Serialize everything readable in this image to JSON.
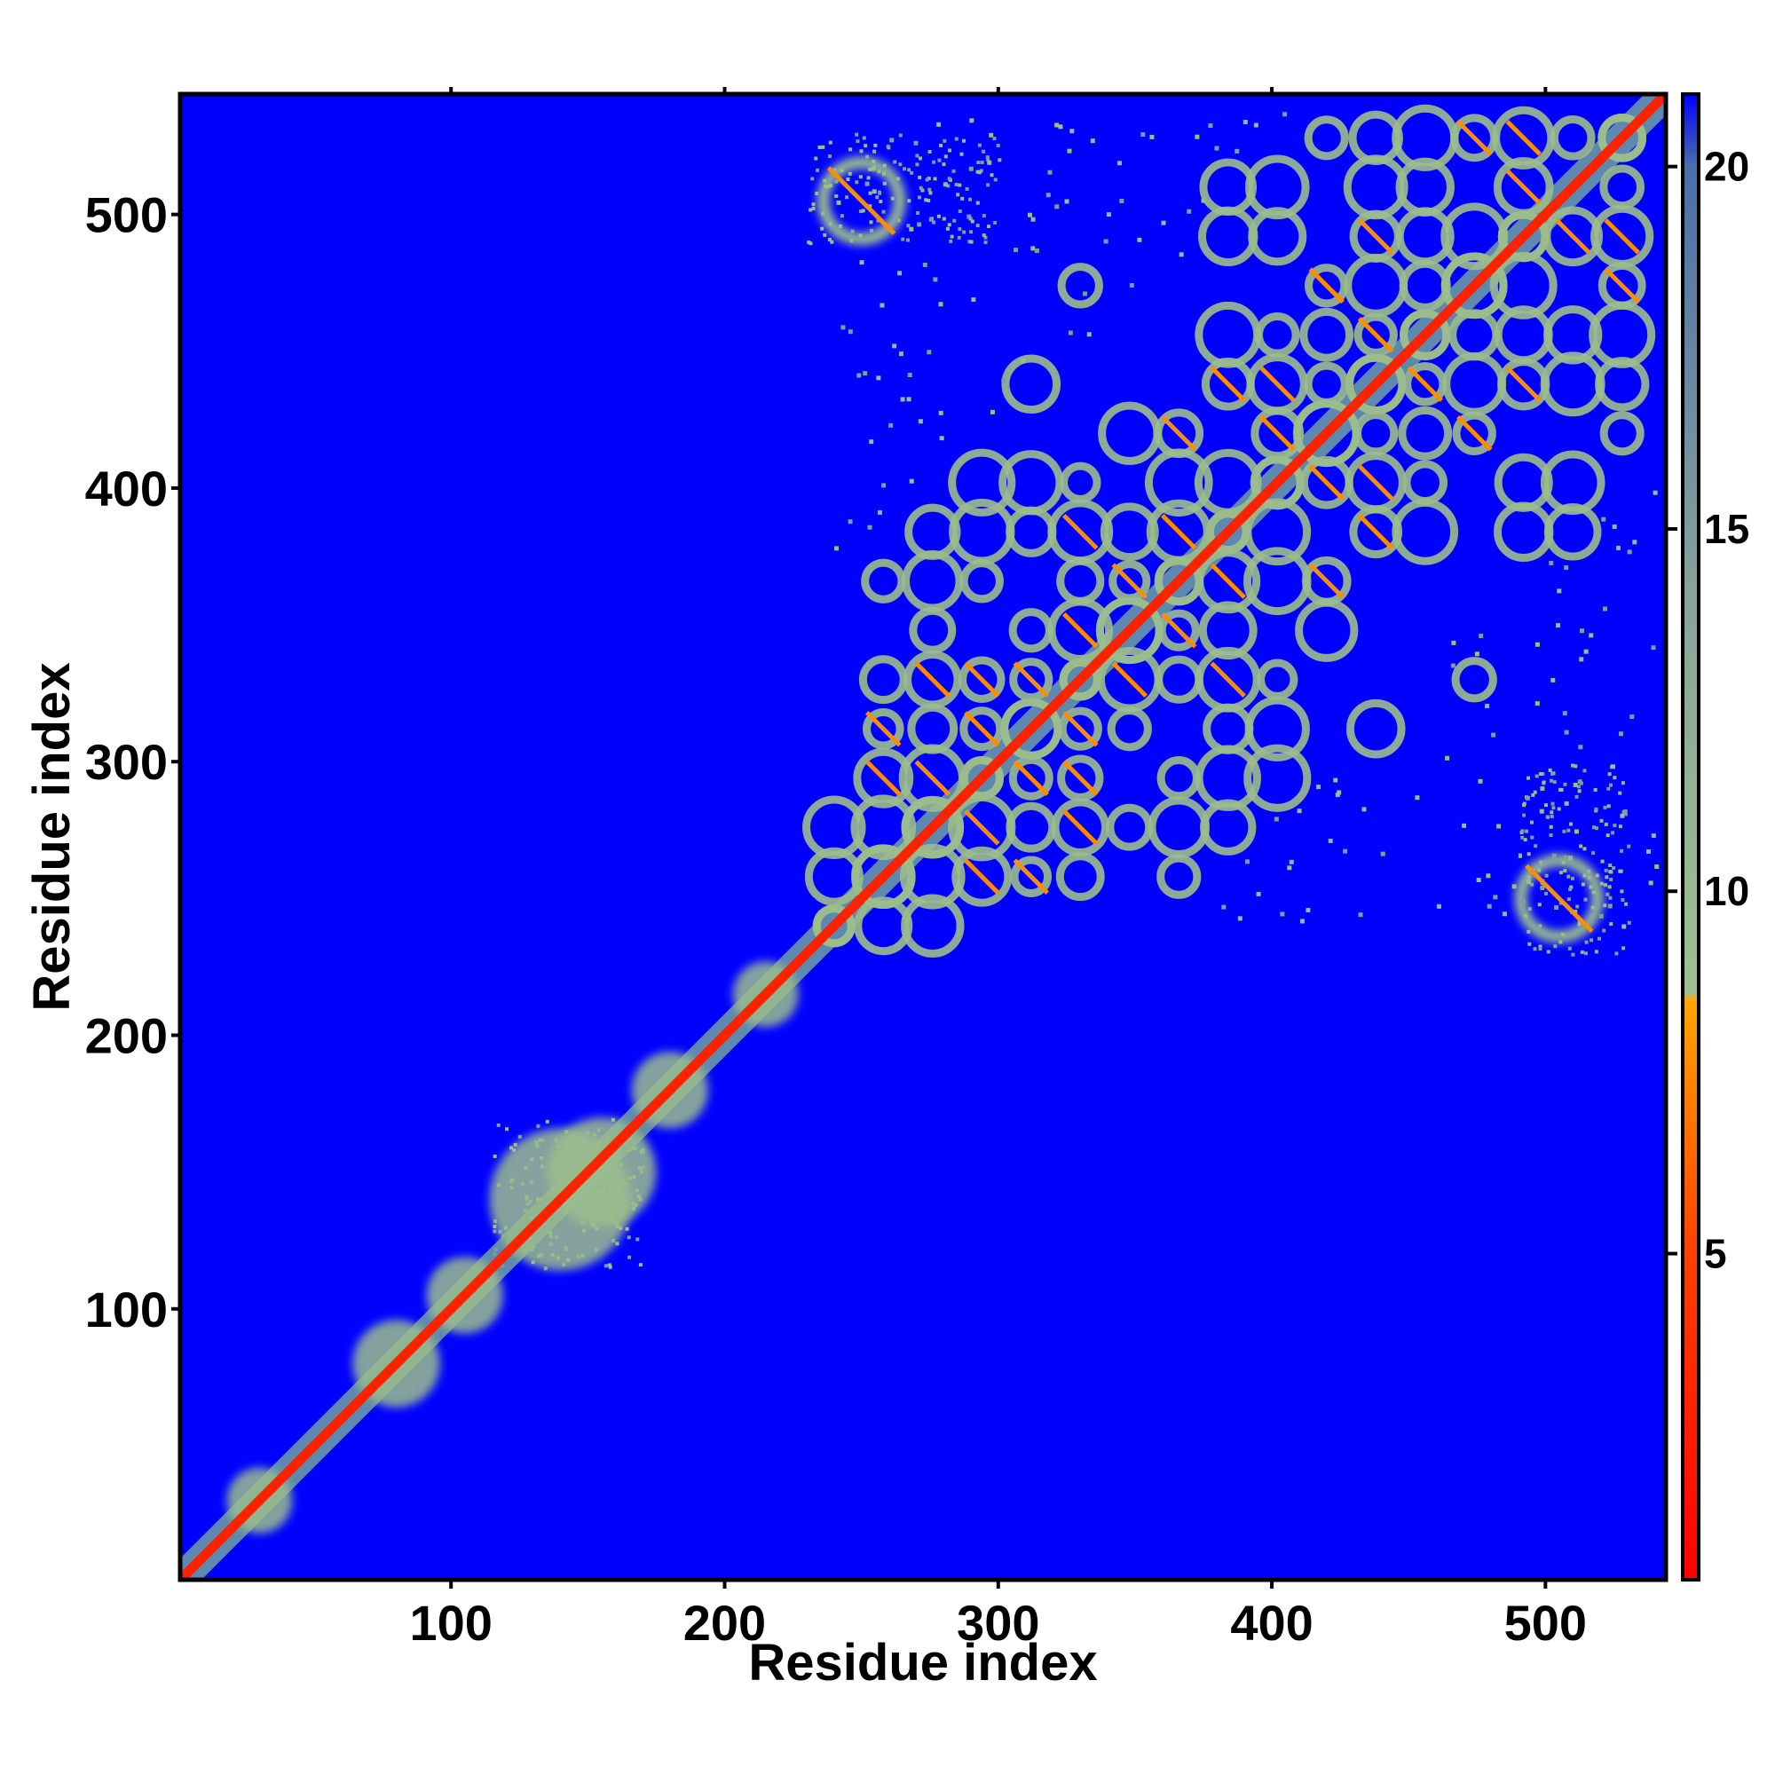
{
  "chart_data": {
    "type": "heatmap",
    "description_kind": "residue-residue distance map",
    "xlabel": "Residue index",
    "ylabel": "Residue index",
    "xlim": [
      1,
      544
    ],
    "ylim": [
      1,
      544
    ],
    "xticks": [
      100,
      200,
      300,
      400,
      500
    ],
    "yticks": [
      100,
      200,
      300,
      400,
      500
    ],
    "colorbar": {
      "min": 0.5,
      "max": 21.0,
      "ticks": [
        5,
        10,
        15,
        20
      ],
      "colors": [
        {
          "value": 0.5,
          "color": "#ff0000"
        },
        {
          "value": 5,
          "color": "#ff4000"
        },
        {
          "value": 8.5,
          "color": "#ffa500"
        },
        {
          "value": 8.6,
          "color": "#9fbf8f"
        },
        {
          "value": 14,
          "color": "#8aa39a"
        },
        {
          "value": 20,
          "color": "#4a6fa8"
        },
        {
          "value": 21,
          "color": "#0000ff"
        }
      ]
    },
    "background_color": "#0000ff",
    "diagonal_color": "#ff2200",
    "contact_regions": [
      {
        "x": [
          1,
          230
        ],
        "y": [
          1,
          230
        ],
        "kind": "diagonal-band"
      },
      {
        "x": [
          115,
          170
        ],
        "y": [
          115,
          170
        ],
        "kind": "near-diagonal-cluster"
      },
      {
        "x": [
          230,
          545
        ],
        "y": [
          230,
          545
        ],
        "kind": "dense-block"
      },
      {
        "x": [
          230,
          300
        ],
        "y": [
          490,
          530
        ],
        "kind": "off-diagonal-cluster"
      },
      {
        "x": [
          490,
          530
        ],
        "y": [
          230,
          300
        ],
        "kind": "off-diagonal-cluster"
      }
    ]
  }
}
